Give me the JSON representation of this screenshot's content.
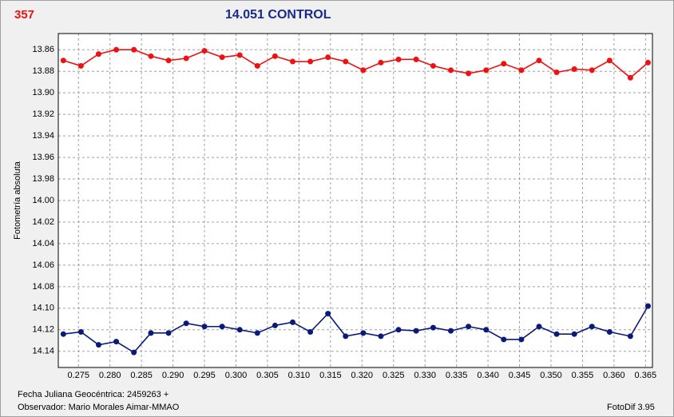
{
  "chart_data": {
    "type": "line",
    "corner_label": "357",
    "title": "14.051 CONTROL",
    "y_label": "Fotometría absoluta",
    "footer": [
      "Fecha Juliana Geocéntrica: 2459263 +",
      "Observador: Mario Morales Aimar-MMAO"
    ],
    "software": "FotoDif 3.95",
    "x": [
      0.2726,
      0.2754,
      0.2782,
      0.281,
      0.2838,
      0.2865,
      0.2893,
      0.2921,
      0.295,
      0.2978,
      0.3006,
      0.3034,
      0.3062,
      0.309,
      0.3118,
      0.3146,
      0.3174,
      0.3202,
      0.323,
      0.3258,
      0.3286,
      0.3313,
      0.3341,
      0.3369,
      0.3397,
      0.3425,
      0.3453,
      0.3481,
      0.3509,
      0.3537,
      0.3565,
      0.3593,
      0.3626,
      0.3654
    ],
    "series": [
      {
        "color": "#ee1111",
        "values": [
          13.87,
          13.875,
          13.864,
          13.86,
          13.86,
          13.866,
          13.87,
          13.868,
          13.861,
          13.867,
          13.865,
          13.875,
          13.866,
          13.871,
          13.871,
          13.867,
          13.871,
          13.879,
          13.872,
          13.869,
          13.869,
          13.875,
          13.879,
          13.882,
          13.879,
          13.873,
          13.879,
          13.87,
          13.881,
          13.878,
          13.879,
          13.87,
          13.886,
          13.872
        ]
      },
      {
        "color": "#0a1a7a",
        "values": [
          14.124,
          14.122,
          14.134,
          14.131,
          14.141,
          14.123,
          14.123,
          14.114,
          14.117,
          14.117,
          14.12,
          14.123,
          14.116,
          14.113,
          14.122,
          14.105,
          14.126,
          14.123,
          14.126,
          14.12,
          14.121,
          14.118,
          14.121,
          14.117,
          14.12,
          14.129,
          14.129,
          14.117,
          14.124,
          14.124,
          14.117,
          14.122,
          14.126,
          14.098
        ]
      }
    ],
    "xlim": [
      0.2718,
      0.3661
    ],
    "ylim": [
      13.845,
      14.155
    ],
    "y_inverted": true,
    "grid": true,
    "xticks": [
      0.275,
      {
        "value": 0.28,
        "label": "0.280"
      },
      0.285,
      {
        "value": 0.29,
        "label": "0.290"
      },
      0.295,
      {
        "value": 0.3,
        "label": "0.300"
      },
      0.305,
      {
        "value": 0.31,
        "label": "0.310"
      },
      0.315,
      {
        "value": 0.32,
        "label": "0.320"
      },
      0.325,
      {
        "value": 0.33,
        "label": "0.330"
      },
      0.335,
      {
        "value": 0.34,
        "label": "0.340"
      },
      0.345,
      {
        "value": 0.35,
        "label": "0.350"
      },
      0.355,
      {
        "value": 0.36,
        "label": "0.360"
      },
      0.365
    ],
    "yticks": [
      13.86,
      13.88,
      {
        "value": 13.9,
        "label": "13.90"
      },
      13.92,
      13.94,
      13.96,
      13.98,
      {
        "value": 14.0,
        "label": "14.00"
      },
      14.02,
      14.04,
      14.06,
      14.08,
      {
        "value": 14.1,
        "label": "14.10"
      },
      14.12,
      14.14
    ]
  }
}
